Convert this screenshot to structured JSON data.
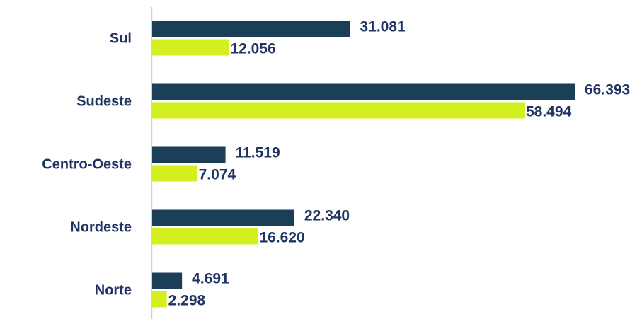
{
  "chart_data": {
    "type": "bar",
    "orientation": "horizontal",
    "categories": [
      "Sul",
      "Sudeste",
      "Centro-Oeste",
      "Nordeste",
      "Norte"
    ],
    "series": [
      {
        "color": "#1c3f58",
        "values": [
          31081,
          66393,
          11519,
          22340,
          4691
        ],
        "value_labels": [
          "31.081",
          "66.393",
          "11.519",
          "22.340",
          "4.691"
        ]
      },
      {
        "color": "#d3ef1f",
        "values": [
          12056,
          58494,
          7074,
          16620,
          2298
        ],
        "value_labels": [
          "12.056",
          "58.494",
          "7.074",
          "16.620",
          "2.298"
        ]
      }
    ]
  }
}
